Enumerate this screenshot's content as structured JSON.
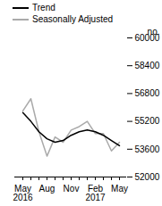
{
  "chart_data": {
    "type": "line",
    "categories": [
      "May 2016",
      null,
      null,
      "Aug",
      null,
      null,
      "Nov",
      null,
      null,
      "Feb 2017",
      null,
      null,
      "May"
    ],
    "series": [
      {
        "name": "Trend",
        "color": "#000000",
        "values": [
          55700,
          55200,
          54600,
          54200,
          54000,
          54100,
          54400,
          54600,
          54700,
          54600,
          54400,
          54100,
          53800
        ]
      },
      {
        "name": "Seasonally Adjusted",
        "color": "#aaaaaa",
        "values": [
          55800,
          56500,
          54600,
          53200,
          54300,
          54000,
          54700,
          54900,
          55200,
          54500,
          54500,
          53500,
          54000
        ]
      }
    ],
    "y_label": "no.",
    "ylim": [
      52000,
      60000
    ],
    "yticks": [
      52000,
      53600,
      55200,
      56800,
      58400,
      60000
    ],
    "legend": "top-left",
    "grid": false
  }
}
